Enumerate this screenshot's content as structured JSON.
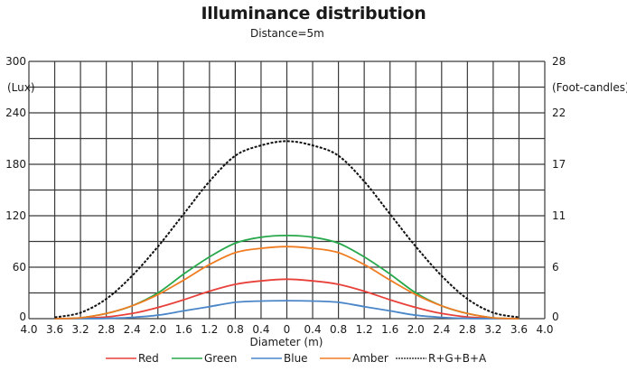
{
  "chart_data": {
    "type": "line",
    "title": "Illuminance distribution",
    "subtitle": "Distance=5m",
    "xlabel": "Diameter (m)",
    "ylabel_left": "(Lux)",
    "ylabel_right": "(Foot-candles)",
    "xlim": [
      -4.0,
      4.0
    ],
    "ylim": [
      0,
      300
    ],
    "x_tick_labels": [
      "4.0",
      "3.6",
      "3.2",
      "2.8",
      "2.4",
      "2.0",
      "1.6",
      "1.2",
      "0.8",
      "0.4",
      "0",
      "0.4",
      "0.8",
      "1.2",
      "1.6",
      "2.0",
      "2.4",
      "2.8",
      "3.2",
      "3.6",
      "4.0"
    ],
    "y_left_ticks": [
      {
        "value": 0,
        "label": "0"
      },
      {
        "value": 60,
        "label": "60"
      },
      {
        "value": 120,
        "label": "120"
      },
      {
        "value": 180,
        "label": "180"
      },
      {
        "value": 240,
        "label": "240"
      },
      {
        "value": 300,
        "label": "300"
      }
    ],
    "y_right_ticks": [
      {
        "value": 0,
        "label": "0"
      },
      {
        "value": 60,
        "label": "6"
      },
      {
        "value": 120,
        "label": "11"
      },
      {
        "value": 180,
        "label": "17"
      },
      {
        "value": 240,
        "label": "22"
      },
      {
        "value": 300,
        "label": "28"
      }
    ],
    "grid": true,
    "grid_x_step": 0.4,
    "grid_y_step": 30,
    "legend_position": "bottom",
    "x": [
      0,
      0.4,
      0.8,
      1.2,
      1.6,
      2.0,
      2.4,
      2.8,
      3.2,
      3.6
    ],
    "series": [
      {
        "name": "Red",
        "color": "#e8413a",
        "style": "solid",
        "values": [
          46,
          44,
          40,
          32,
          22,
          13,
          6,
          2,
          0.5,
          0
        ]
      },
      {
        "name": "Green",
        "color": "#27a84a",
        "style": "solid",
        "values": [
          97,
          95,
          88,
          72,
          52,
          30,
          15,
          6,
          1,
          0
        ]
      },
      {
        "name": "Blue",
        "color": "#4a86c8",
        "style": "solid",
        "values": [
          21,
          20.5,
          19,
          14,
          9,
          4,
          1.5,
          0.3,
          0,
          0
        ]
      },
      {
        "name": "Amber",
        "color": "#f07c22",
        "style": "solid",
        "values": [
          84,
          82,
          77,
          63,
          45,
          28,
          15,
          6,
          1,
          0
        ]
      },
      {
        "name": "R+G+B+A",
        "color": "#111111",
        "style": "dotted",
        "values": [
          207,
          202,
          190,
          160,
          122,
          84,
          50,
          23,
          7,
          1.5
        ]
      }
    ]
  },
  "labels": {
    "title": "Illuminance distribution",
    "subtitle": "Distance=5m",
    "xlabel": "Diameter (m)",
    "ylabel_left": "(Lux)",
    "ylabel_right": "(Foot-candles)"
  }
}
